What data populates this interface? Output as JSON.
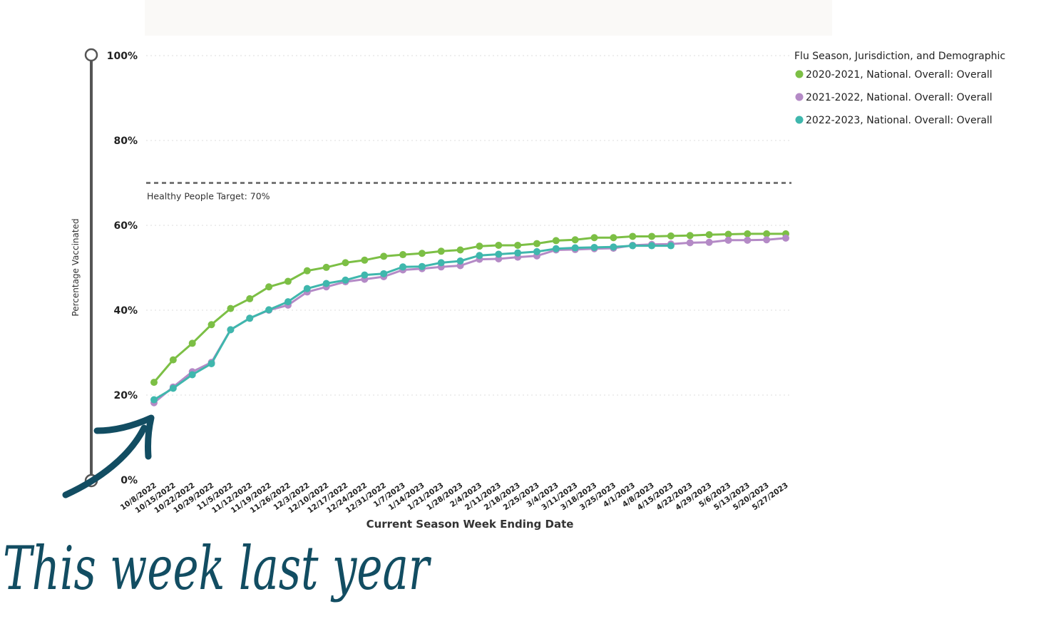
{
  "chart_data": {
    "type": "line",
    "title": "",
    "xlabel": "Current Season Week Ending Date",
    "ylabel": "Percentage Vaccinated",
    "ylim": [
      0,
      100
    ],
    "y_ticks": [
      "0%",
      "20%",
      "40%",
      "60%",
      "80%",
      "100%"
    ],
    "y_tick_values": [
      0,
      20,
      40,
      60,
      80,
      100
    ],
    "grid": "horizontal dotted",
    "legend_title": "Flu Season, Jurisdiction, and Demographic",
    "legend_position": "top-right",
    "reference_line": {
      "value": 70,
      "label": "Healthy People Target: 70%"
    },
    "annotation": "This week last year",
    "categories": [
      "10/8/2022",
      "10/15/2022",
      "10/22/2022",
      "10/29/2022",
      "11/5/2022",
      "11/12/2022",
      "11/19/2022",
      "11/26/2022",
      "12/3/2022",
      "12/10/2022",
      "12/17/2022",
      "12/24/2022",
      "12/31/2022",
      "1/7/2023",
      "1/14/2023",
      "1/21/2023",
      "1/28/2023",
      "2/4/2023",
      "2/11/2023",
      "2/18/2023",
      "2/25/2023",
      "3/4/2023",
      "3/11/2023",
      "3/18/2023",
      "3/25/2023",
      "4/1/2023",
      "4/8/2023",
      "4/15/2023",
      "4/22/2023",
      "4/29/2023",
      "5/6/2023",
      "5/13/2023",
      "5/20/2023",
      "5/27/2023"
    ],
    "series": [
      {
        "name": "2020-2021, National. Overall: Overall",
        "color": "#7cbf45",
        "values": [
          23.0,
          28.3,
          32.2,
          36.6,
          40.4,
          42.7,
          45.5,
          46.8,
          49.3,
          50.1,
          51.2,
          51.8,
          52.7,
          53.1,
          53.4,
          53.9,
          54.2,
          55.1,
          55.3,
          55.3,
          55.7,
          56.4,
          56.6,
          57.1,
          57.1,
          57.4,
          57.4,
          57.5,
          57.6,
          57.8,
          57.9,
          58.0,
          58.0,
          58.0
        ]
      },
      {
        "name": "2021-2022, National. Overall: Overall",
        "color": "#b48ac6",
        "values": [
          18.2,
          21.9,
          25.5,
          27.7,
          35.4,
          38.1,
          40.0,
          41.2,
          44.3,
          45.5,
          46.7,
          47.3,
          47.9,
          49.5,
          49.8,
          50.2,
          50.5,
          52.0,
          52.1,
          52.5,
          52.8,
          54.2,
          54.3,
          54.5,
          54.6,
          55.3,
          55.5,
          55.6,
          55.9,
          56.0,
          56.5,
          56.5,
          56.6,
          57.0
        ]
      },
      {
        "name": "2022-2023, National. Overall: Overall",
        "color": "#3fb7ad",
        "values": [
          18.9,
          21.6,
          24.8,
          27.4,
          35.4,
          38.1,
          40.1,
          42.0,
          45.1,
          46.3,
          47.1,
          48.3,
          48.6,
          50.2,
          50.3,
          51.2,
          51.6,
          52.9,
          53.2,
          53.5,
          53.8,
          54.5,
          54.7,
          54.8,
          54.9,
          55.2,
          55.2,
          55.2,
          null,
          null,
          null,
          null,
          null,
          null
        ]
      }
    ]
  }
}
